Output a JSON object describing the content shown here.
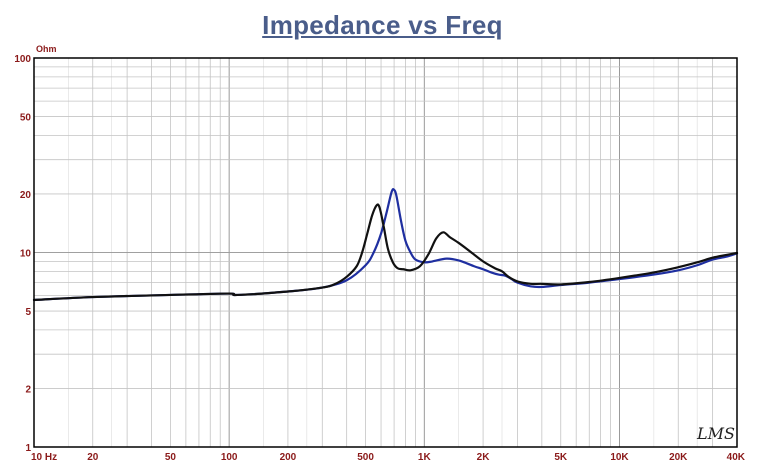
{
  "chart_data": {
    "type": "line",
    "title": "Impedance vs Freq",
    "y_unit": "Ohm",
    "x_scale": "log",
    "y_scale": "log",
    "xlim": [
      10,
      40000
    ],
    "ylim": [
      1,
      100
    ],
    "grid": true,
    "x_tick_labels": [
      {
        "value": 10,
        "label": "10 Hz"
      },
      {
        "value": 20,
        "label": "20"
      },
      {
        "value": 50,
        "label": "50"
      },
      {
        "value": 100,
        "label": "100"
      },
      {
        "value": 200,
        "label": "200"
      },
      {
        "value": 500,
        "label": "500"
      },
      {
        "value": 1000,
        "label": "1K"
      },
      {
        "value": 2000,
        "label": "2K"
      },
      {
        "value": 5000,
        "label": "5K"
      },
      {
        "value": 10000,
        "label": "10K"
      },
      {
        "value": 20000,
        "label": "20K"
      },
      {
        "value": 40000,
        "label": "40K"
      }
    ],
    "y_tick_labels": [
      {
        "value": 1,
        "label": "1"
      },
      {
        "value": 2,
        "label": "2"
      },
      {
        "value": 5,
        "label": "5"
      },
      {
        "value": 10,
        "label": "10"
      },
      {
        "value": 20,
        "label": "20"
      },
      {
        "value": 50,
        "label": "50"
      },
      {
        "value": 100,
        "label": "100"
      }
    ],
    "series": [
      {
        "color": "#1f2fa0",
        "points": [
          [
            10,
            5.7
          ],
          [
            20,
            5.9
          ],
          [
            50,
            6.05
          ],
          [
            100,
            6.15
          ],
          [
            110,
            6.05
          ],
          [
            200,
            6.3
          ],
          [
            300,
            6.6
          ],
          [
            400,
            7.2
          ],
          [
            500,
            8.6
          ],
          [
            550,
            10.0
          ],
          [
            600,
            12.5
          ],
          [
            640,
            16.0
          ],
          [
            680,
            20.5
          ],
          [
            700,
            21.0
          ],
          [
            720,
            19.5
          ],
          [
            760,
            14.5
          ],
          [
            800,
            11.5
          ],
          [
            850,
            10.0
          ],
          [
            900,
            9.2
          ],
          [
            1000,
            8.9
          ],
          [
            1100,
            9.0
          ],
          [
            1300,
            9.3
          ],
          [
            1500,
            9.1
          ],
          [
            1800,
            8.5
          ],
          [
            2000,
            8.2
          ],
          [
            2200,
            7.9
          ],
          [
            2400,
            7.7
          ],
          [
            2600,
            7.6
          ],
          [
            2800,
            7.3
          ],
          [
            3000,
            7.0
          ],
          [
            3500,
            6.7
          ],
          [
            4000,
            6.65
          ],
          [
            5000,
            6.8
          ],
          [
            7000,
            7.0
          ],
          [
            10000,
            7.3
          ],
          [
            15000,
            7.7
          ],
          [
            20000,
            8.1
          ],
          [
            25000,
            8.6
          ],
          [
            30000,
            9.2
          ],
          [
            35000,
            9.5
          ],
          [
            40000,
            9.9
          ]
        ]
      },
      {
        "color": "#111111",
        "points": [
          [
            10,
            5.7
          ],
          [
            20,
            5.9
          ],
          [
            50,
            6.05
          ],
          [
            100,
            6.15
          ],
          [
            110,
            6.05
          ],
          [
            200,
            6.3
          ],
          [
            300,
            6.6
          ],
          [
            350,
            6.9
          ],
          [
            400,
            7.5
          ],
          [
            450,
            8.5
          ],
          [
            480,
            10.0
          ],
          [
            510,
            12.5
          ],
          [
            540,
            15.5
          ],
          [
            570,
            17.5
          ],
          [
            590,
            17.0
          ],
          [
            620,
            13.5
          ],
          [
            650,
            10.5
          ],
          [
            690,
            8.9
          ],
          [
            730,
            8.3
          ],
          [
            780,
            8.2
          ],
          [
            850,
            8.1
          ],
          [
            950,
            8.5
          ],
          [
            1050,
            9.8
          ],
          [
            1150,
            11.8
          ],
          [
            1250,
            12.7
          ],
          [
            1350,
            12.0
          ],
          [
            1500,
            11.2
          ],
          [
            1700,
            10.2
          ],
          [
            2000,
            9.0
          ],
          [
            2300,
            8.3
          ],
          [
            2500,
            8.0
          ],
          [
            2700,
            7.5
          ],
          [
            3000,
            7.1
          ],
          [
            3500,
            6.9
          ],
          [
            4000,
            6.9
          ],
          [
            5000,
            6.85
          ],
          [
            7000,
            7.05
          ],
          [
            10000,
            7.4
          ],
          [
            15000,
            7.9
          ],
          [
            20000,
            8.4
          ],
          [
            25000,
            8.9
          ],
          [
            30000,
            9.4
          ],
          [
            35000,
            9.7
          ],
          [
            40000,
            9.95
          ]
        ]
      }
    ],
    "logo_text": "LMS"
  }
}
